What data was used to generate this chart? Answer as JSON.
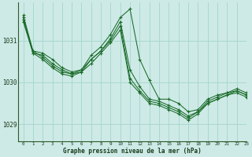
{
  "title": "Graphe pression niveau de la mer (hPa)",
  "bg_color": "#ceeae6",
  "grid_color": "#a8d8d0",
  "line_color": "#1a6b2a",
  "xlim": [
    -0.5,
    23
  ],
  "ylim": [
    1028.6,
    1031.9
  ],
  "yticks": [
    1029,
    1030,
    1031
  ],
  "xticks": [
    0,
    1,
    2,
    3,
    4,
    5,
    6,
    7,
    8,
    9,
    10,
    11,
    12,
    13,
    14,
    15,
    16,
    17,
    18,
    19,
    20,
    21,
    22,
    23
  ],
  "series": [
    [
      1031.6,
      1030.75,
      1030.7,
      1030.55,
      1030.35,
      1030.25,
      1030.3,
      1030.65,
      1030.85,
      1031.15,
      1031.55,
      1031.75,
      1030.55,
      1030.05,
      1029.6,
      1029.6,
      1029.5,
      1029.3,
      1029.35,
      1029.6,
      1029.7,
      1029.75,
      1029.85,
      1029.75
    ],
    [
      1031.55,
      1030.7,
      1030.65,
      1030.45,
      1030.3,
      1030.2,
      1030.25,
      1030.55,
      1030.75,
      1031.05,
      1031.45,
      1030.3,
      1029.9,
      1029.6,
      1029.55,
      1029.45,
      1029.35,
      1029.2,
      1029.3,
      1029.55,
      1029.65,
      1029.75,
      1029.8,
      1029.7
    ],
    [
      1031.5,
      1030.75,
      1030.6,
      1030.4,
      1030.25,
      1030.2,
      1030.3,
      1030.55,
      1030.75,
      1031.0,
      1031.35,
      1030.1,
      1029.8,
      1029.55,
      1029.5,
      1029.4,
      1029.3,
      1029.15,
      1029.3,
      1029.5,
      1029.6,
      1029.7,
      1029.8,
      1029.7
    ],
    [
      1031.45,
      1030.7,
      1030.55,
      1030.35,
      1030.2,
      1030.15,
      1030.25,
      1030.45,
      1030.7,
      1030.95,
      1031.25,
      1030.0,
      1029.75,
      1029.5,
      1029.45,
      1029.35,
      1029.25,
      1029.1,
      1029.25,
      1029.5,
      1029.6,
      1029.7,
      1029.75,
      1029.65
    ]
  ]
}
